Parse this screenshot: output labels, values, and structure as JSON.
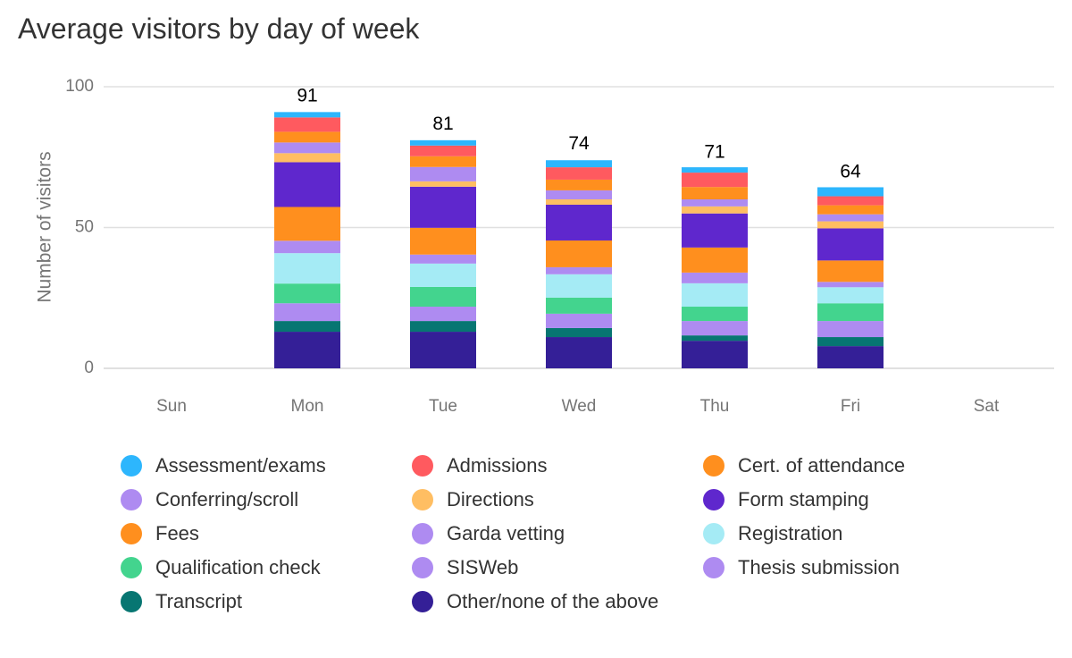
{
  "chart_data": {
    "type": "bar",
    "stacked": true,
    "title": "Average visitors by day of week",
    "xlabel": "",
    "ylabel": "Number of visitors",
    "ylim": [
      0,
      100
    ],
    "yticks": [
      "0",
      "50",
      "100"
    ],
    "ytick_values": [
      0,
      50,
      100
    ],
    "grid": true,
    "legend_position": "bottom",
    "categories": [
      "Sun",
      "Mon",
      "Tue",
      "Wed",
      "Thu",
      "Fri",
      "Sat"
    ],
    "totals": [
      null,
      91,
      81,
      74,
      71,
      64,
      null
    ],
    "total_labels": [
      "",
      "91",
      "81",
      "74",
      "71",
      "64",
      ""
    ],
    "series": [
      {
        "name": "Assessment/exams",
        "color": "#2DB6FD",
        "values": [
          0,
          1.9,
          1.9,
          2.5,
          1.9,
          3.2,
          0
        ]
      },
      {
        "name": "Admissions",
        "color": "#FF5A5F",
        "values": [
          0,
          5.1,
          3.8,
          4.4,
          5.1,
          3.2,
          0
        ]
      },
      {
        "name": "Cert. of attendance",
        "color": "#FF8F1E",
        "values": [
          0,
          3.8,
          3.8,
          3.8,
          4.4,
          3.2,
          0
        ]
      },
      {
        "name": "Conferring/scroll",
        "color": "#AE8BF1",
        "values": [
          0,
          3.8,
          5.1,
          3.2,
          2.5,
          2.5,
          0
        ]
      },
      {
        "name": "Directions",
        "color": "#FFBE62",
        "values": [
          0,
          3.2,
          1.9,
          1.9,
          2.5,
          2.5,
          0
        ]
      },
      {
        "name": "Form stamping",
        "color": "#5F27CD",
        "values": [
          0,
          15.9,
          14.6,
          12.7,
          12.1,
          11.4,
          0
        ]
      },
      {
        "name": "Fees",
        "color": "#FF8F1E",
        "values": [
          0,
          12.0,
          9.5,
          9.5,
          8.9,
          7.6,
          0
        ]
      },
      {
        "name": "Garda vetting",
        "color": "#AE8BF1",
        "values": [
          0,
          4.4,
          3.2,
          2.5,
          3.8,
          1.9,
          0
        ]
      },
      {
        "name": "Registration",
        "color": "#A5EBF5",
        "values": [
          0,
          10.8,
          8.3,
          8.3,
          8.3,
          5.7,
          0
        ]
      },
      {
        "name": "Qualification check",
        "color": "#43D48E",
        "values": [
          0,
          7.0,
          7.0,
          5.7,
          5.1,
          6.3,
          0
        ]
      },
      {
        "name": "SISWeb",
        "color": "#AE8BF1",
        "values": [
          0,
          0,
          0,
          0,
          0,
          0,
          0
        ]
      },
      {
        "name": "Thesis submission",
        "color": "#AE8BF1",
        "values": [
          0,
          6.3,
          5.1,
          5.1,
          5.1,
          5.7,
          0
        ]
      },
      {
        "name": "Transcript",
        "color": "#077672",
        "values": [
          0,
          3.8,
          3.8,
          3.2,
          1.9,
          3.2,
          0
        ]
      },
      {
        "name": "Other/none of the above",
        "color": "#341F97",
        "values": [
          0,
          13.0,
          13.0,
          11.1,
          9.8,
          7.9,
          0
        ]
      }
    ]
  }
}
